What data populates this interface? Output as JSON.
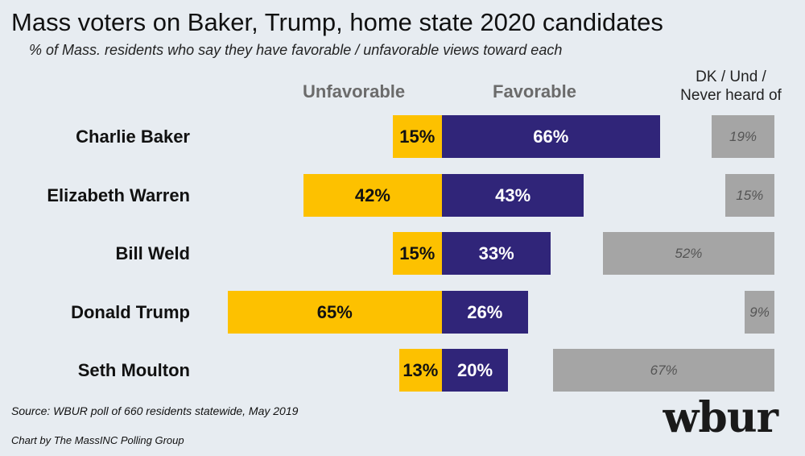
{
  "header": {
    "title": "Mass voters on Baker, Trump, home state 2020 candidates",
    "subtitle": "% of Mass. residents who say they have favorable / unfavorable views toward each"
  },
  "columns": {
    "unfavorable": "Unfavorable",
    "favorable": "Favorable",
    "dk_line1": "DK / Und /",
    "dk_line2": "Never heard of"
  },
  "footer": {
    "source": "Source: WBUR poll of 660 residents statewide, May 2019",
    "credit": "Chart by The MassINC Polling Group",
    "logo": "wbur"
  },
  "colors": {
    "unfavorable": "#fdc100",
    "favorable": "#302579",
    "dk": "#a5a5a5"
  },
  "chart_data": {
    "type": "bar",
    "orientation": "horizontal-diverging",
    "categories": [
      "Charlie Baker",
      "Elizabeth Warren",
      "Bill Weld",
      "Donald Trump",
      "Seth Moulton"
    ],
    "series": [
      {
        "name": "Unfavorable",
        "values": [
          15,
          42,
          15,
          65,
          13
        ],
        "labels": [
          "15%",
          "42%",
          "15%",
          "65%",
          "13%"
        ]
      },
      {
        "name": "Favorable",
        "values": [
          66,
          43,
          33,
          26,
          20
        ],
        "labels": [
          "66%",
          "43%",
          "33%",
          "26%",
          "20%"
        ]
      },
      {
        "name": "DK / Und / Never heard of",
        "values": [
          19,
          15,
          52,
          9,
          67
        ],
        "labels": [
          "19%",
          "15%",
          "52%",
          "9%",
          "67%"
        ]
      }
    ],
    "unit": "%"
  }
}
